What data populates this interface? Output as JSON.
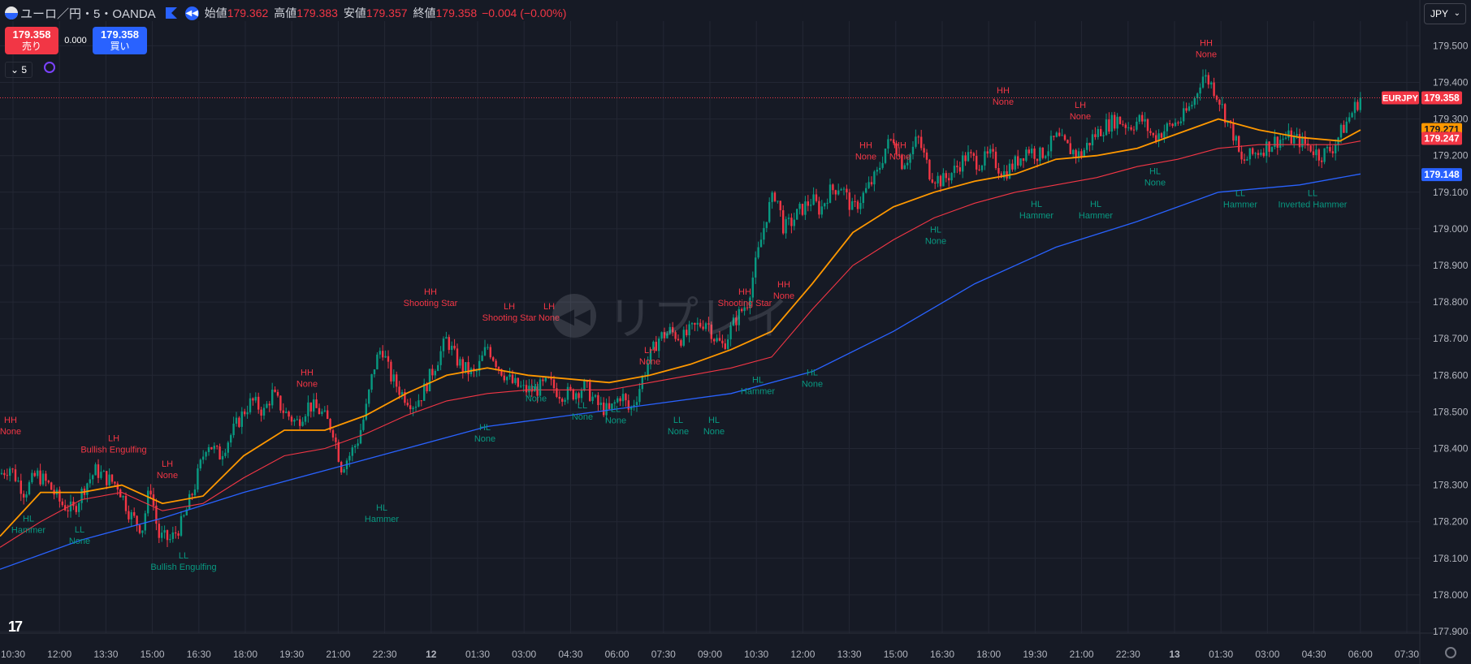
{
  "header": {
    "symbol_title": "ユーロ／円・5・OANDA",
    "open_label": "始値",
    "open_value": "179.362",
    "high_label": "高値",
    "high_value": "179.383",
    "low_label": "安値",
    "low_value": "179.357",
    "close_label": "終値",
    "close_value": "179.358",
    "change": "−0.004 (−0.00%)"
  },
  "trade": {
    "sell_price": "179.358",
    "sell_label": "売り",
    "buy_price": "179.358",
    "buy_label": "買い",
    "spread": "0.000"
  },
  "interval_label": "5",
  "currency_button": "JPY",
  "watermark_text": "リプレイ",
  "colors": {
    "background": "#161a25",
    "up": "#089981",
    "down": "#f23645",
    "ema_fast": "#ff9800",
    "ema_mid": "#f23645",
    "ema_slow": "#2962ff",
    "grid": "#232734"
  },
  "chart_data": {
    "type": "candlestick",
    "symbol": "EURJPY",
    "ylim": [
      177.9,
      179.56
    ],
    "y_ticks": [
      "179.500",
      "179.400",
      "179.300",
      "179.200",
      "179.100",
      "179.000",
      "178.900",
      "178.800",
      "178.700",
      "178.600",
      "178.500",
      "178.400",
      "178.300",
      "178.200",
      "178.100",
      "178.000",
      "177.900"
    ],
    "x_ticks": [
      "10:30",
      "12:00",
      "13:30",
      "15:00",
      "16:30",
      "18:00",
      "19:30",
      "21:00",
      "22:30",
      "12",
      "01:30",
      "03:00",
      "04:30",
      "06:00",
      "07:30",
      "09:00",
      "10:30",
      "12:00",
      "13:30",
      "15:00",
      "16:30",
      "18:00",
      "19:30",
      "21:00",
      "22:30",
      "13",
      "01:30",
      "03:00",
      "04:30",
      "06:00",
      "07:30"
    ],
    "price_path": [
      [
        0,
        178.33
      ],
      [
        12,
        178.35
      ],
      [
        30,
        178.28
      ],
      [
        45,
        178.33
      ],
      [
        60,
        178.3
      ],
      [
        75,
        178.25
      ],
      [
        90,
        178.23
      ],
      [
        105,
        178.3
      ],
      [
        118,
        178.34
      ],
      [
        130,
        178.32
      ],
      [
        145,
        178.3
      ],
      [
        160,
        178.22
      ],
      [
        175,
        178.18
      ],
      [
        185,
        178.3
      ],
      [
        195,
        178.16
      ],
      [
        210,
        178.15
      ],
      [
        225,
        178.2
      ],
      [
        240,
        178.3
      ],
      [
        255,
        178.42
      ],
      [
        270,
        178.38
      ],
      [
        285,
        178.44
      ],
      [
        300,
        178.5
      ],
      [
        310,
        178.53
      ],
      [
        325,
        178.5
      ],
      [
        335,
        178.55
      ],
      [
        350,
        178.5
      ],
      [
        365,
        178.47
      ],
      [
        380,
        178.52
      ],
      [
        395,
        178.5
      ],
      [
        410,
        178.45
      ],
      [
        420,
        178.35
      ],
      [
        430,
        178.38
      ],
      [
        440,
        178.42
      ],
      [
        450,
        178.5
      ],
      [
        460,
        178.62
      ],
      [
        470,
        178.68
      ],
      [
        480,
        178.6
      ],
      [
        495,
        178.55
      ],
      [
        510,
        178.52
      ],
      [
        520,
        178.55
      ],
      [
        530,
        178.6
      ],
      [
        540,
        178.65
      ],
      [
        550,
        178.7
      ],
      [
        560,
        178.65
      ],
      [
        570,
        178.62
      ],
      [
        585,
        178.6
      ],
      [
        600,
        178.68
      ],
      [
        615,
        178.62
      ],
      [
        630,
        178.58
      ],
      [
        645,
        178.56
      ],
      [
        660,
        178.56
      ],
      [
        675,
        178.58
      ],
      [
        690,
        178.55
      ],
      [
        705,
        178.55
      ],
      [
        720,
        178.57
      ],
      [
        735,
        178.52
      ],
      [
        750,
        178.5
      ],
      [
        765,
        178.55
      ],
      [
        775,
        178.5
      ],
      [
        785,
        178.55
      ],
      [
        795,
        178.62
      ],
      [
        810,
        178.7
      ],
      [
        825,
        178.72
      ],
      [
        840,
        178.7
      ],
      [
        855,
        178.73
      ],
      [
        870,
        178.75
      ],
      [
        880,
        178.7
      ],
      [
        890,
        178.68
      ],
      [
        905,
        178.75
      ],
      [
        920,
        178.8
      ],
      [
        935,
        178.95
      ],
      [
        945,
        179.05
      ],
      [
        955,
        179.1
      ],
      [
        965,
        179.0
      ],
      [
        975,
        179.02
      ],
      [
        985,
        179.05
      ],
      [
        1000,
        179.08
      ],
      [
        1010,
        179.05
      ],
      [
        1020,
        179.1
      ],
      [
        1035,
        179.12
      ],
      [
        1050,
        179.05
      ],
      [
        1065,
        179.1
      ],
      [
        1080,
        179.15
      ],
      [
        1090,
        179.22
      ],
      [
        1100,
        179.25
      ],
      [
        1110,
        179.18
      ],
      [
        1120,
        179.2
      ],
      [
        1130,
        179.25
      ],
      [
        1145,
        179.15
      ],
      [
        1160,
        179.13
      ],
      [
        1175,
        179.16
      ],
      [
        1190,
        179.2
      ],
      [
        1205,
        179.18
      ],
      [
        1220,
        179.2
      ],
      [
        1235,
        179.15
      ],
      [
        1250,
        179.18
      ],
      [
        1265,
        179.22
      ],
      [
        1280,
        179.2
      ],
      [
        1290,
        179.22
      ],
      [
        1300,
        179.25
      ],
      [
        1315,
        179.22
      ],
      [
        1330,
        179.2
      ],
      [
        1345,
        179.25
      ],
      [
        1360,
        179.28
      ],
      [
        1375,
        179.3
      ],
      [
        1390,
        179.28
      ],
      [
        1405,
        179.3
      ],
      [
        1420,
        179.25
      ],
      [
        1440,
        179.28
      ],
      [
        1455,
        179.3
      ],
      [
        1470,
        179.35
      ],
      [
        1480,
        179.42
      ],
      [
        1490,
        179.4
      ],
      [
        1500,
        179.36
      ],
      [
        1510,
        179.3
      ],
      [
        1520,
        179.25
      ],
      [
        1528,
        179.18
      ],
      [
        1540,
        179.2
      ],
      [
        1555,
        179.22
      ],
      [
        1570,
        179.24
      ],
      [
        1585,
        179.25
      ],
      [
        1600,
        179.24
      ],
      [
        1615,
        179.22
      ],
      [
        1625,
        179.2
      ],
      [
        1640,
        179.22
      ],
      [
        1655,
        179.28
      ],
      [
        1665,
        179.32
      ],
      [
        1675,
        179.36
      ]
    ],
    "ema_fast": [
      [
        0,
        178.16
      ],
      [
        50,
        178.28
      ],
      [
        100,
        178.28
      ],
      [
        150,
        178.3
      ],
      [
        200,
        178.25
      ],
      [
        250,
        178.27
      ],
      [
        300,
        178.38
      ],
      [
        350,
        178.45
      ],
      [
        400,
        178.45
      ],
      [
        450,
        178.49
      ],
      [
        500,
        178.55
      ],
      [
        550,
        178.6
      ],
      [
        600,
        178.62
      ],
      [
        650,
        178.6
      ],
      [
        700,
        178.59
      ],
      [
        750,
        178.58
      ],
      [
        800,
        178.6
      ],
      [
        850,
        178.63
      ],
      [
        900,
        178.67
      ],
      [
        950,
        178.72
      ],
      [
        1000,
        178.85
      ],
      [
        1050,
        178.99
      ],
      [
        1100,
        179.06
      ],
      [
        1150,
        179.1
      ],
      [
        1200,
        179.13
      ],
      [
        1250,
        179.15
      ],
      [
        1300,
        179.19
      ],
      [
        1350,
        179.2
      ],
      [
        1400,
        179.22
      ],
      [
        1450,
        179.26
      ],
      [
        1500,
        179.3
      ],
      [
        1550,
        179.27
      ],
      [
        1600,
        179.25
      ],
      [
        1650,
        179.24
      ],
      [
        1675,
        179.27
      ]
    ],
    "ema_mid": [
      [
        0,
        178.13
      ],
      [
        50,
        178.2
      ],
      [
        100,
        178.26
      ],
      [
        150,
        178.28
      ],
      [
        200,
        178.23
      ],
      [
        250,
        178.25
      ],
      [
        300,
        178.32
      ],
      [
        350,
        178.38
      ],
      [
        400,
        178.4
      ],
      [
        450,
        178.44
      ],
      [
        500,
        178.49
      ],
      [
        550,
        178.53
      ],
      [
        600,
        178.55
      ],
      [
        650,
        178.56
      ],
      [
        700,
        178.56
      ],
      [
        750,
        178.56
      ],
      [
        800,
        178.58
      ],
      [
        850,
        178.6
      ],
      [
        900,
        178.62
      ],
      [
        950,
        178.65
      ],
      [
        1000,
        178.78
      ],
      [
        1050,
        178.9
      ],
      [
        1100,
        178.97
      ],
      [
        1150,
        179.03
      ],
      [
        1200,
        179.07
      ],
      [
        1250,
        179.1
      ],
      [
        1300,
        179.12
      ],
      [
        1350,
        179.14
      ],
      [
        1400,
        179.17
      ],
      [
        1450,
        179.19
      ],
      [
        1500,
        179.22
      ],
      [
        1550,
        179.23
      ],
      [
        1600,
        179.23
      ],
      [
        1650,
        179.23
      ],
      [
        1675,
        179.24
      ]
    ],
    "ema_slow": [
      [
        0,
        178.07
      ],
      [
        100,
        178.15
      ],
      [
        200,
        178.21
      ],
      [
        300,
        178.28
      ],
      [
        400,
        178.34
      ],
      [
        500,
        178.4
      ],
      [
        600,
        178.46
      ],
      [
        700,
        178.49
      ],
      [
        800,
        178.52
      ],
      [
        900,
        178.55
      ],
      [
        1000,
        178.61
      ],
      [
        1100,
        178.72
      ],
      [
        1200,
        178.85
      ],
      [
        1300,
        178.95
      ],
      [
        1400,
        179.02
      ],
      [
        1500,
        179.1
      ],
      [
        1550,
        179.11
      ],
      [
        1600,
        179.12
      ],
      [
        1675,
        179.15
      ]
    ],
    "price_labels": [
      {
        "symbol": "EURJPY",
        "value": "179.358",
        "color": "#f23645"
      },
      {
        "value": "179.271",
        "color": "#ff9800"
      },
      {
        "value": "179.247",
        "color": "#f23645"
      },
      {
        "value": "179.148",
        "color": "#2962ff"
      }
    ],
    "annotations": [
      {
        "x": 13,
        "y": 178.47,
        "text": "HH None",
        "kind": "high"
      },
      {
        "x": 140,
        "y": 178.42,
        "text": "LH Bullish Engulfing",
        "kind": "high"
      },
      {
        "x": 206,
        "y": 178.35,
        "text": "LH None",
        "kind": "high"
      },
      {
        "x": 378,
        "y": 178.6,
        "text": "HH None",
        "kind": "high"
      },
      {
        "x": 530,
        "y": 178.82,
        "text": "HH Shooting Star",
        "kind": "high"
      },
      {
        "x": 627,
        "y": 178.78,
        "text": "LH Shooting Star",
        "kind": "high"
      },
      {
        "x": 676,
        "y": 178.78,
        "text": "LH None",
        "kind": "high"
      },
      {
        "x": 800,
        "y": 178.66,
        "text": "LH None",
        "kind": "high"
      },
      {
        "x": 917,
        "y": 178.82,
        "text": "HH Shooting Star",
        "kind": "high"
      },
      {
        "x": 965,
        "y": 178.84,
        "text": "HH None",
        "kind": "high"
      },
      {
        "x": 1066,
        "y": 179.22,
        "text": "HH None",
        "kind": "high"
      },
      {
        "x": 1108,
        "y": 179.22,
        "text": "HH None",
        "kind": "high"
      },
      {
        "x": 1235,
        "y": 179.37,
        "text": "HH None",
        "kind": "high"
      },
      {
        "x": 1330,
        "y": 179.33,
        "text": "LH None",
        "kind": "high"
      },
      {
        "x": 1485,
        "y": 179.5,
        "text": "HH None",
        "kind": "high"
      },
      {
        "x": 35,
        "y": 178.2,
        "text": "HL Hammer",
        "kind": "low"
      },
      {
        "x": 98,
        "y": 178.17,
        "text": "LL None",
        "kind": "low"
      },
      {
        "x": 226,
        "y": 178.1,
        "text": "LL Bullish Engulfing",
        "kind": "low"
      },
      {
        "x": 470,
        "y": 178.23,
        "text": "HL Hammer",
        "kind": "low"
      },
      {
        "x": 597,
        "y": 178.45,
        "text": "HL None",
        "kind": "low"
      },
      {
        "x": 660,
        "y": 178.56,
        "text": "HL None",
        "kind": "low"
      },
      {
        "x": 717,
        "y": 178.51,
        "text": "LL None",
        "kind": "low"
      },
      {
        "x": 758,
        "y": 178.5,
        "text": "LL None",
        "kind": "low"
      },
      {
        "x": 835,
        "y": 178.47,
        "text": "LL None",
        "kind": "low"
      },
      {
        "x": 879,
        "y": 178.47,
        "text": "HL None",
        "kind": "low"
      },
      {
        "x": 933,
        "y": 178.58,
        "text": "HL Hammer",
        "kind": "low"
      },
      {
        "x": 1000,
        "y": 178.6,
        "text": "HL None",
        "kind": "low"
      },
      {
        "x": 1152,
        "y": 178.99,
        "text": "HL None",
        "kind": "low"
      },
      {
        "x": 1276,
        "y": 179.06,
        "text": "HL Hammer",
        "kind": "low"
      },
      {
        "x": 1349,
        "y": 179.06,
        "text": "HL Hammer",
        "kind": "low"
      },
      {
        "x": 1422,
        "y": 179.15,
        "text": "HL None",
        "kind": "low"
      },
      {
        "x": 1527,
        "y": 179.09,
        "text": "LL Hammer",
        "kind": "low"
      },
      {
        "x": 1616,
        "y": 179.09,
        "text": "LL Inverted Hammer",
        "kind": "low"
      }
    ]
  }
}
